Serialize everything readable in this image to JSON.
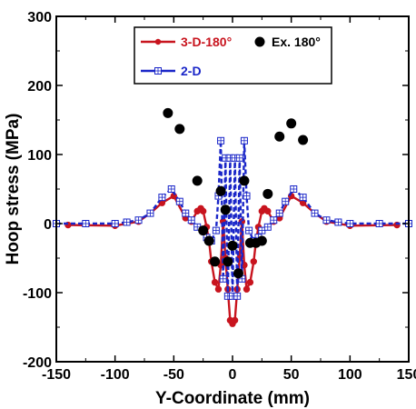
{
  "chart_data": {
    "type": "line",
    "xlabel": "Y-Coordinate (mm)",
    "ylabel": "Hoop stress (MPa)",
    "xlim": [
      -150,
      150
    ],
    "ylim": [
      -200,
      300
    ],
    "xticks": [
      -150,
      -100,
      -50,
      0,
      50,
      100,
      150
    ],
    "yticks": [
      -200,
      -100,
      0,
      100,
      200,
      300
    ],
    "grid": false,
    "legend_position": "top",
    "series": [
      {
        "name": "3-D-180°",
        "style": "line-circle",
        "color": "#c8141e",
        "x": [
          -140,
          -100,
          -80,
          -70,
          -60,
          -50,
          -40,
          -35,
          -30,
          -27,
          -25,
          -22,
          -20,
          -18,
          -15,
          -12,
          -10,
          -8,
          -6,
          -4,
          -2,
          0,
          2,
          4,
          6,
          8,
          10,
          12,
          15,
          18,
          20,
          22,
          25,
          27,
          30,
          35,
          40,
          50,
          60,
          70,
          80,
          100,
          140
        ],
        "y": [
          -2,
          -3,
          3,
          15,
          30,
          40,
          8,
          3,
          18,
          22,
          18,
          -5,
          -25,
          -55,
          -85,
          -95,
          -60,
          3,
          -50,
          -95,
          -140,
          -145,
          -140,
          -95,
          -50,
          3,
          -60,
          -95,
          -85,
          -55,
          -25,
          -5,
          18,
          22,
          18,
          3,
          8,
          40,
          30,
          15,
          3,
          -3,
          -2
        ]
      },
      {
        "name": "2-D",
        "style": "dashed-square",
        "color": "#1a26c8",
        "x": [
          -150,
          -125,
          -100,
          -90,
          -80,
          -70,
          -60,
          -52,
          -45,
          -40,
          -35,
          -30,
          -25,
          -22,
          -18,
          -14,
          -12,
          -10,
          -8,
          -6,
          -4,
          -2,
          0,
          2,
          4,
          6,
          8,
          10,
          12,
          14,
          18,
          22,
          25,
          30,
          35,
          40,
          45,
          52,
          60,
          70,
          80,
          90,
          100,
          125,
          150
        ],
        "y": [
          0,
          0,
          0,
          2,
          5,
          15,
          38,
          50,
          32,
          15,
          5,
          -5,
          -10,
          -20,
          -25,
          -10,
          40,
          120,
          -80,
          95,
          -105,
          95,
          -105,
          95,
          -105,
          95,
          -80,
          120,
          40,
          -10,
          -25,
          -20,
          -10,
          -5,
          5,
          15,
          32,
          50,
          38,
          15,
          5,
          2,
          0,
          0,
          0
        ]
      },
      {
        "name": "Ex. 180°",
        "style": "marker-only",
        "color": "#000000",
        "x": [
          -55,
          -45,
          -30,
          -25,
          -20,
          -15,
          -10,
          -6,
          -4,
          0,
          5,
          10,
          15,
          20,
          25,
          30,
          40,
          50,
          60
        ],
        "y": [
          160,
          137,
          62,
          -10,
          -25,
          -55,
          47,
          20,
          -55,
          -32,
          -72,
          62,
          -28,
          -28,
          -25,
          43,
          126,
          145,
          121
        ]
      }
    ]
  }
}
